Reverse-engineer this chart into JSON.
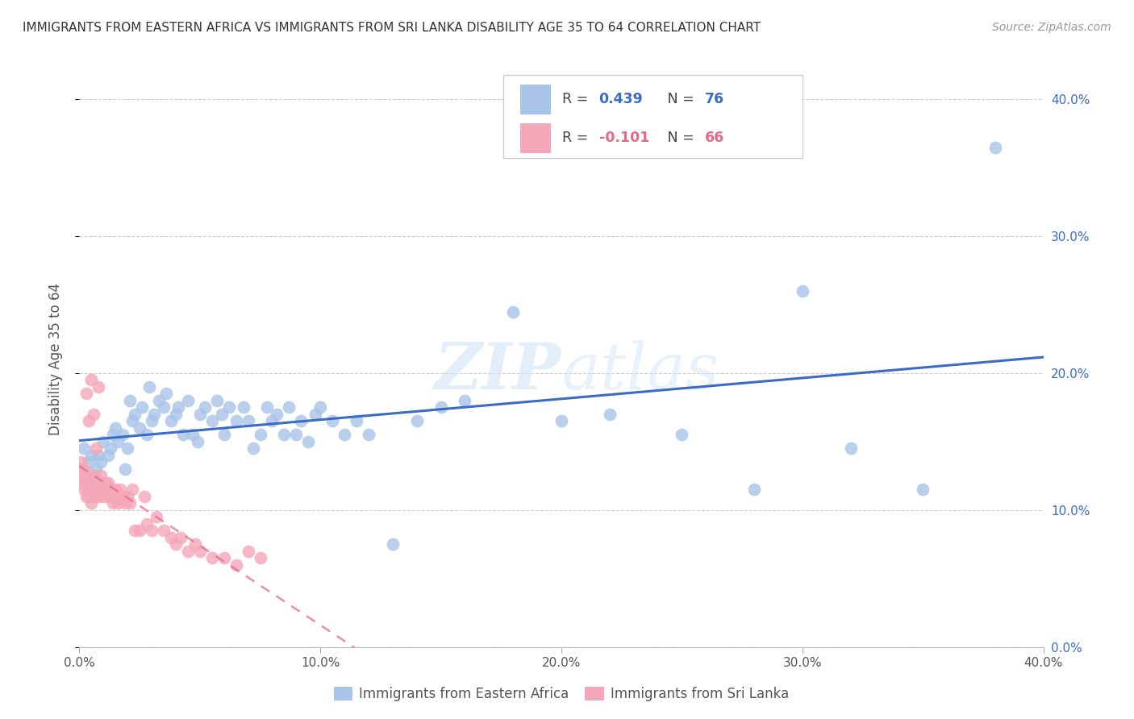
{
  "title": "IMMIGRANTS FROM EASTERN AFRICA VS IMMIGRANTS FROM SRI LANKA DISABILITY AGE 35 TO 64 CORRELATION CHART",
  "source": "Source: ZipAtlas.com",
  "ylabel": "Disability Age 35 to 64",
  "xmin": 0.0,
  "xmax": 0.4,
  "ymin": 0.0,
  "ymax": 0.42,
  "blue_R": 0.439,
  "blue_N": 76,
  "pink_R": -0.101,
  "pink_N": 66,
  "blue_color": "#a8c4e8",
  "pink_color": "#f4a7b9",
  "blue_line_color": "#3a6cc5",
  "pink_line_color": "#e8688a",
  "watermark_zip": "ZIP",
  "watermark_atlas": "atlas",
  "legend_label_blue": "Immigrants from Eastern Africa",
  "legend_label_pink": "Immigrants from Sri Lanka",
  "x_tick_labels": [
    "0.0%",
    "",
    "",
    "",
    "10.0%",
    "",
    "",
    "",
    "20.0%",
    "",
    "",
    "",
    "30.0%",
    "",
    "",
    "",
    "40.0%"
  ],
  "y_tick_labels": [
    "0.0%",
    "10.0%",
    "20.0%",
    "30.0%",
    "40.0%"
  ],
  "blue_scatter_x": [
    0.001,
    0.002,
    0.003,
    0.004,
    0.005,
    0.006,
    0.007,
    0.008,
    0.009,
    0.01,
    0.012,
    0.013,
    0.014,
    0.015,
    0.016,
    0.018,
    0.019,
    0.02,
    0.021,
    0.022,
    0.023,
    0.025,
    0.026,
    0.028,
    0.029,
    0.03,
    0.031,
    0.033,
    0.035,
    0.036,
    0.038,
    0.04,
    0.041,
    0.043,
    0.045,
    0.047,
    0.049,
    0.05,
    0.052,
    0.055,
    0.057,
    0.059,
    0.06,
    0.062,
    0.065,
    0.068,
    0.07,
    0.072,
    0.075,
    0.078,
    0.08,
    0.082,
    0.085,
    0.087,
    0.09,
    0.092,
    0.095,
    0.098,
    0.1,
    0.105,
    0.11,
    0.115,
    0.12,
    0.13,
    0.14,
    0.15,
    0.16,
    0.18,
    0.2,
    0.22,
    0.25,
    0.28,
    0.3,
    0.32,
    0.35,
    0.38
  ],
  "blue_scatter_y": [
    0.13,
    0.145,
    0.12,
    0.135,
    0.14,
    0.125,
    0.13,
    0.14,
    0.135,
    0.15,
    0.14,
    0.145,
    0.155,
    0.16,
    0.15,
    0.155,
    0.13,
    0.145,
    0.18,
    0.165,
    0.17,
    0.16,
    0.175,
    0.155,
    0.19,
    0.165,
    0.17,
    0.18,
    0.175,
    0.185,
    0.165,
    0.17,
    0.175,
    0.155,
    0.18,
    0.155,
    0.15,
    0.17,
    0.175,
    0.165,
    0.18,
    0.17,
    0.155,
    0.175,
    0.165,
    0.175,
    0.165,
    0.145,
    0.155,
    0.175,
    0.165,
    0.17,
    0.155,
    0.175,
    0.155,
    0.165,
    0.15,
    0.17,
    0.175,
    0.165,
    0.155,
    0.165,
    0.155,
    0.075,
    0.165,
    0.175,
    0.18,
    0.245,
    0.165,
    0.17,
    0.155,
    0.115,
    0.26,
    0.145,
    0.115,
    0.365
  ],
  "pink_scatter_x": [
    0.0005,
    0.001,
    0.001,
    0.0015,
    0.002,
    0.002,
    0.0025,
    0.003,
    0.003,
    0.0035,
    0.004,
    0.004,
    0.0045,
    0.005,
    0.005,
    0.0055,
    0.006,
    0.006,
    0.007,
    0.007,
    0.008,
    0.008,
    0.009,
    0.009,
    0.01,
    0.01,
    0.011,
    0.011,
    0.012,
    0.012,
    0.013,
    0.014,
    0.014,
    0.015,
    0.015,
    0.016,
    0.017,
    0.018,
    0.019,
    0.02,
    0.021,
    0.022,
    0.023,
    0.025,
    0.027,
    0.028,
    0.03,
    0.032,
    0.035,
    0.038,
    0.04,
    0.042,
    0.045,
    0.048,
    0.05,
    0.055,
    0.06,
    0.065,
    0.07,
    0.075,
    0.003,
    0.004,
    0.005,
    0.006,
    0.007,
    0.008
  ],
  "pink_scatter_y": [
    0.135,
    0.13,
    0.12,
    0.125,
    0.115,
    0.13,
    0.12,
    0.125,
    0.11,
    0.115,
    0.12,
    0.11,
    0.125,
    0.115,
    0.105,
    0.12,
    0.11,
    0.125,
    0.115,
    0.12,
    0.11,
    0.115,
    0.12,
    0.125,
    0.115,
    0.11,
    0.12,
    0.115,
    0.11,
    0.12,
    0.115,
    0.11,
    0.105,
    0.115,
    0.11,
    0.105,
    0.115,
    0.11,
    0.105,
    0.11,
    0.105,
    0.115,
    0.085,
    0.085,
    0.11,
    0.09,
    0.085,
    0.095,
    0.085,
    0.08,
    0.075,
    0.08,
    0.07,
    0.075,
    0.07,
    0.065,
    0.065,
    0.06,
    0.07,
    0.065,
    0.185,
    0.165,
    0.195,
    0.17,
    0.145,
    0.19
  ]
}
